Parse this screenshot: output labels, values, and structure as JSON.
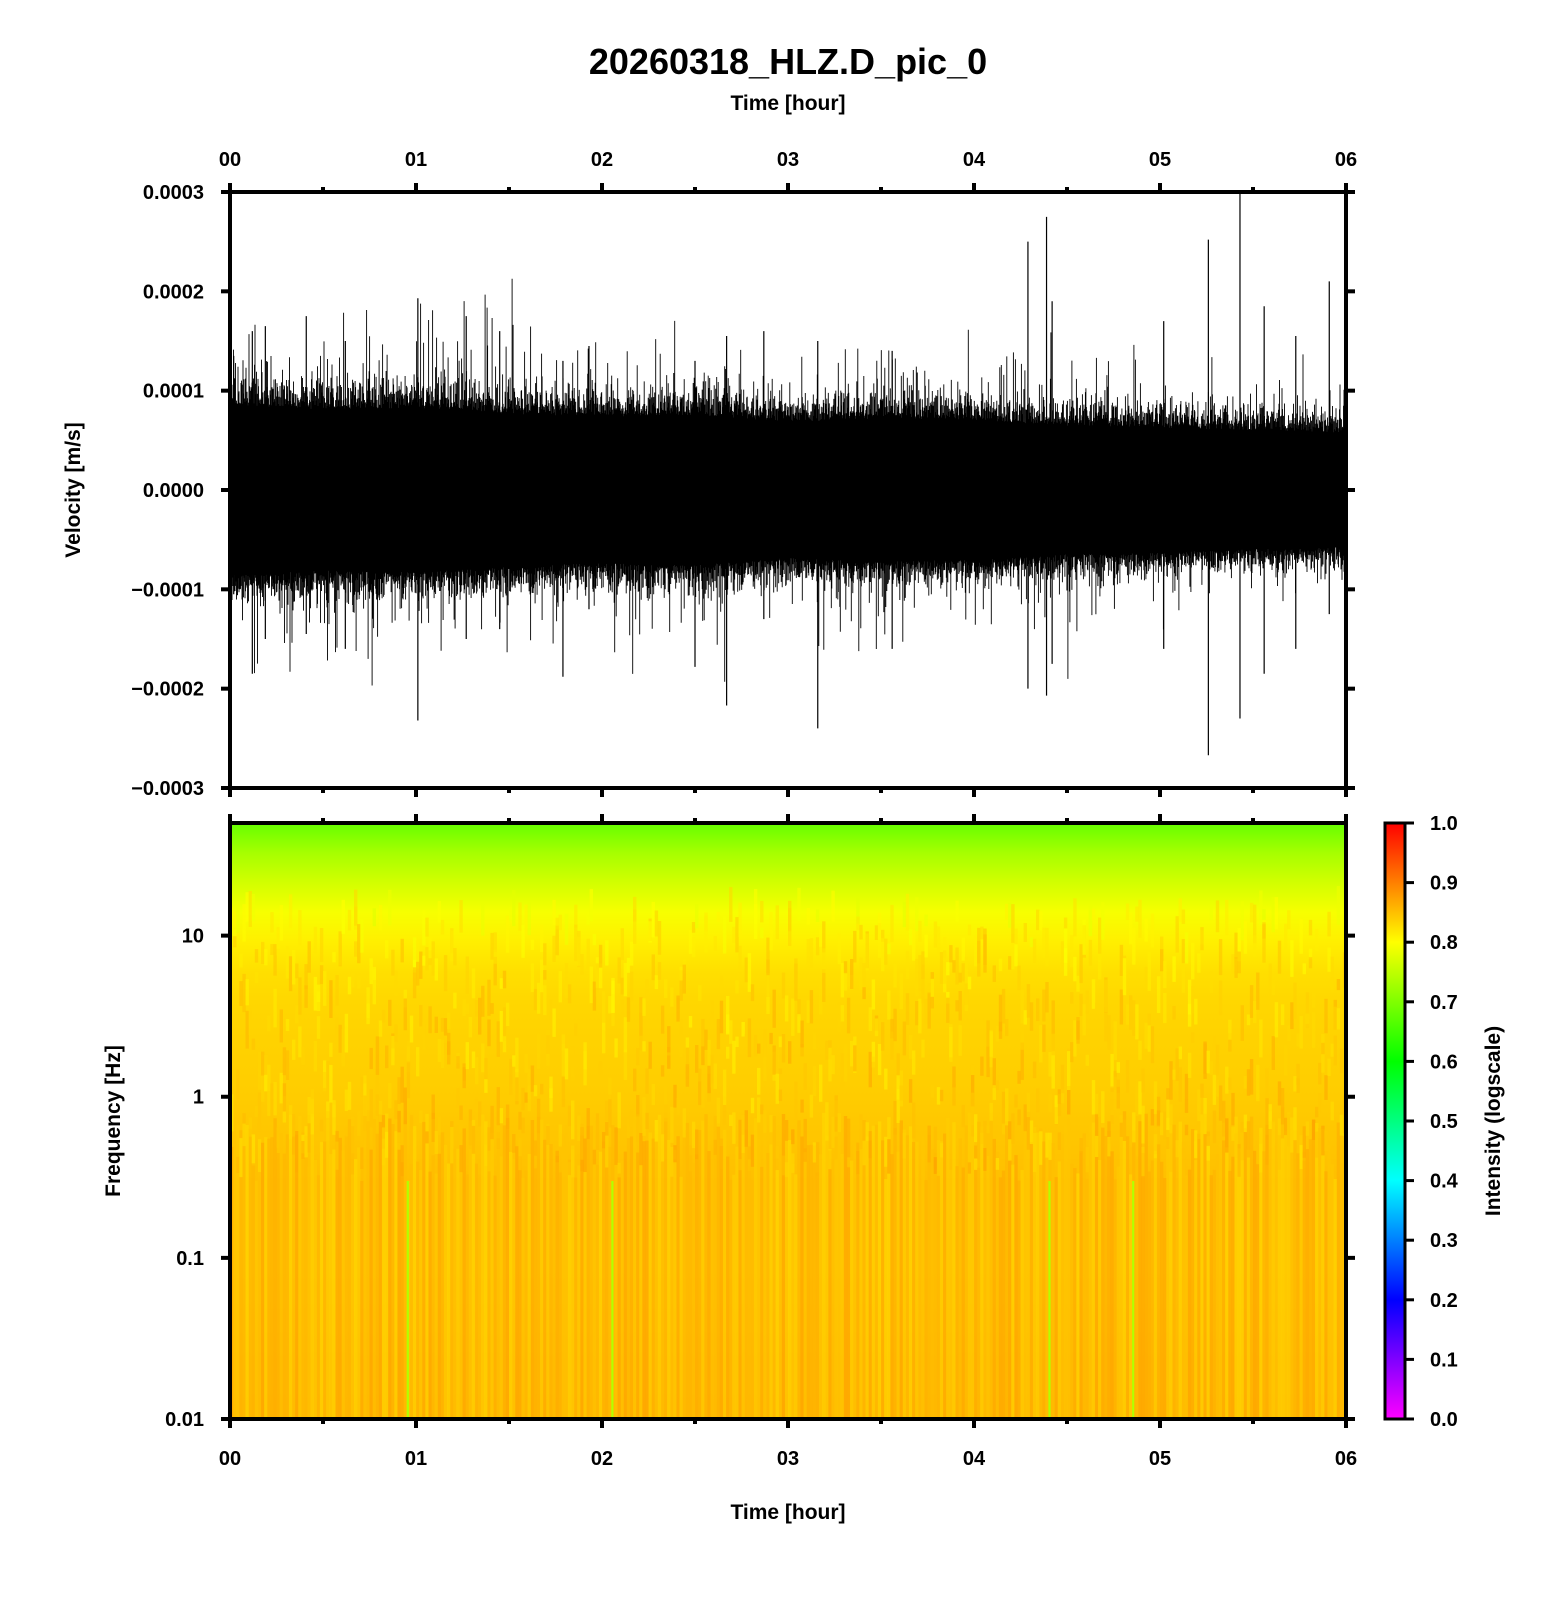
{
  "chart_data": [
    {
      "type": "line",
      "title": "20260318_HLZ.D_pic_0",
      "top_xlabel": "Time [hour]",
      "ylabel": "Velocity [m/s]",
      "x_tick_labels": [
        "00",
        "01",
        "02",
        "03",
        "04",
        "05",
        "06"
      ],
      "y_tick_labels": [
        "0.0003",
        "0.0002",
        "0.0001",
        "0.0000",
        "−0.0001",
        "−0.0002",
        "−0.0003"
      ],
      "xlim": [
        0,
        6
      ],
      "ylim": [
        -0.0003,
        0.0003
      ],
      "series": [
        {
          "color": "#000000",
          "envelope_hours": [
            0,
            0.5,
            1,
            1.5,
            2,
            2.5,
            3,
            3.5,
            4,
            4.5,
            5,
            5.5,
            6
          ],
          "envelope_amplitude": [
            9.5e-05,
            9e-05,
            9.2e-05,
            8.5e-05,
            8.2e-05,
            8.4e-05,
            7.6e-05,
            8e-05,
            7.8e-05,
            7.2e-05,
            7e-05,
            6.6e-05,
            6.4e-05
          ],
          "spikes": [
            {
              "hour": 0.02,
              "max": 0.000135,
              "min": -0.000105
            },
            {
              "hour": 0.12,
              "max": 0.00016,
              "min": -0.000185
            },
            {
              "hour": 0.19,
              "max": 0.000165,
              "min": -0.00015
            },
            {
              "hour": 0.41,
              "max": 0.000175,
              "min": -0.000145
            },
            {
              "hour": 0.62,
              "max": 0.00015,
              "min": -0.00016
            },
            {
              "hour": 1.01,
              "max": 0.000193,
              "min": -0.000232
            },
            {
              "hour": 1.27,
              "max": 0.000175,
              "min": -0.00015
            },
            {
              "hour": 1.45,
              "max": 0.00016,
              "min": -0.00014
            },
            {
              "hour": 1.79,
              "max": 0.00013,
              "min": -0.000188
            },
            {
              "hour": 1.93,
              "max": 0.000145,
              "min": -0.00012
            },
            {
              "hour": 2.5,
              "max": 0.00013,
              "min": -0.000178
            },
            {
              "hour": 2.67,
              "max": 0.000155,
              "min": -0.000217
            },
            {
              "hour": 2.87,
              "max": 0.00016,
              "min": -0.00013
            },
            {
              "hour": 3.16,
              "max": 0.00015,
              "min": -0.00024
            },
            {
              "hour": 3.56,
              "max": 0.00014,
              "min": -0.00016
            },
            {
              "hour": 4.29,
              "max": 0.00025,
              "min": -0.0002
            },
            {
              "hour": 4.39,
              "max": 0.000275,
              "min": -0.000207
            },
            {
              "hour": 4.42,
              "max": 0.00019,
              "min": -0.000175
            },
            {
              "hour": 5.02,
              "max": 0.00017,
              "min": -0.00016
            },
            {
              "hour": 5.26,
              "max": 0.000252,
              "min": -0.000267
            },
            {
              "hour": 5.43,
              "max": 0.0003,
              "min": -0.00023
            },
            {
              "hour": 5.56,
              "max": 0.000185,
              "min": -0.000185
            },
            {
              "hour": 5.73,
              "max": 0.000155,
              "min": -0.00016
            },
            {
              "hour": 5.91,
              "max": 0.00021,
              "min": -0.000125
            }
          ]
        }
      ]
    },
    {
      "type": "heatmap",
      "xlabel": "Time [hour]",
      "ylabel": "Frequency [Hz]",
      "x_tick_labels": [
        "00",
        "01",
        "02",
        "03",
        "04",
        "05",
        "06"
      ],
      "y_tick_labels": [
        "10",
        "1",
        "0.1",
        "0.01"
      ],
      "y_scale": "log",
      "xlim": [
        0,
        6
      ],
      "ylim": [
        0.01,
        50
      ],
      "colorbar_label": "Intensity (logscale)",
      "colorbar_ticks": [
        "1.0",
        "0.9",
        "0.8",
        "0.7",
        "0.6",
        "0.5",
        "0.4",
        "0.3",
        "0.2",
        "0.1",
        "0.0"
      ],
      "colorbar_range": [
        0,
        1
      ],
      "colorbar_colors": [
        "#ff00ff",
        "#0000ff",
        "#00ffff",
        "#00ff00",
        "#ffff00",
        "#ff0000"
      ],
      "intensity_profile_hz": [
        50,
        30,
        15,
        10,
        5,
        1,
        0.3,
        0.1,
        0.01
      ],
      "intensity_profile_value": [
        0.68,
        0.74,
        0.79,
        0.81,
        0.83,
        0.84,
        0.85,
        0.85,
        0.86
      ]
    }
  ]
}
